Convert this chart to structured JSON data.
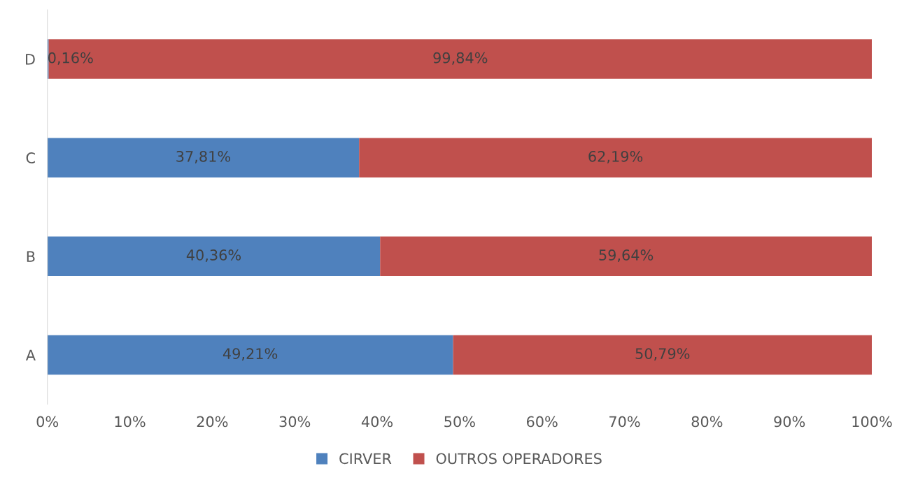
{
  "chart_data": {
    "type": "bar",
    "orientation": "horizontal",
    "stacked": true,
    "categories": [
      "D",
      "C",
      "B",
      "A"
    ],
    "series": [
      {
        "name": "CIRVER",
        "color": "#4f81bd",
        "values": [
          0.16,
          37.81,
          40.36,
          49.21
        ],
        "value_labels": [
          "0,16%",
          "37,81%",
          "40,36%",
          "49,21%"
        ]
      },
      {
        "name": "OUTROS OPERADORES",
        "color": "#c0504d",
        "values": [
          99.84,
          62.19,
          59.64,
          50.79
        ],
        "value_labels": [
          "99,84%",
          "62,19%",
          "59,64%",
          "50,79%"
        ]
      }
    ],
    "xlim": [
      0,
      100
    ],
    "xticks": [
      {
        "value": 0,
        "label": "0%"
      },
      {
        "value": 10,
        "label": "10%"
      },
      {
        "value": 20,
        "label": "20%"
      },
      {
        "value": 30,
        "label": "30%"
      },
      {
        "value": 40,
        "label": "40%"
      },
      {
        "value": 50,
        "label": "50%"
      },
      {
        "value": 60,
        "label": "60%"
      },
      {
        "value": 70,
        "label": "70%"
      },
      {
        "value": 80,
        "label": "80%"
      },
      {
        "value": 90,
        "label": "90%"
      },
      {
        "value": 100,
        "label": "100%"
      }
    ],
    "grid": false,
    "legend": "bottom"
  }
}
